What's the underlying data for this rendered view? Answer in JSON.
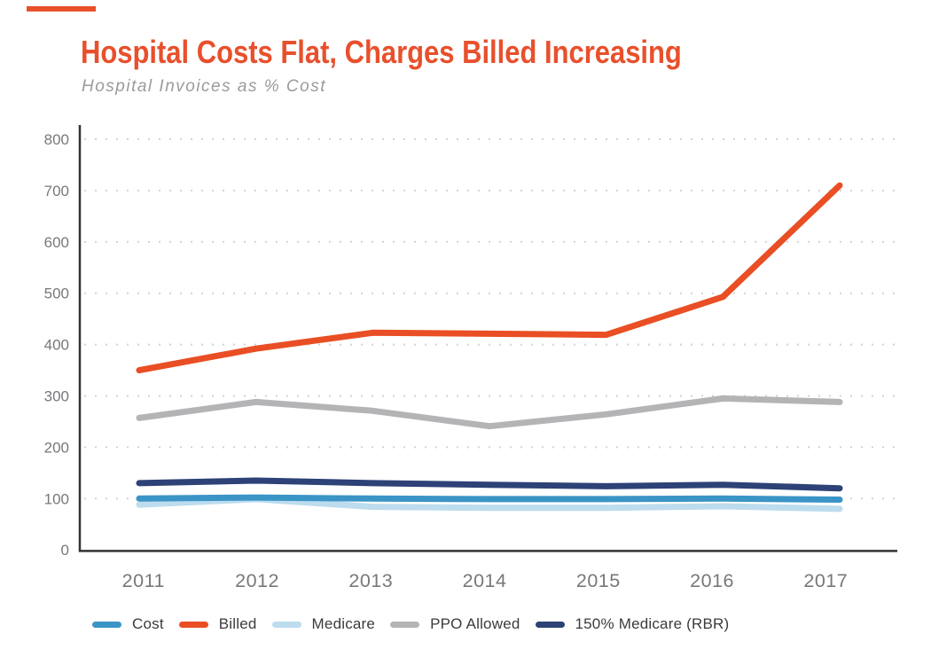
{
  "page": {
    "background": "#FFFFFF",
    "accent_color": "#E8502C"
  },
  "header": {
    "title": "Hospital Costs Flat, Charges Billed Increasing",
    "subtitle": "Hospital Invoices as % Cost"
  },
  "axis": {
    "label_color": "#77787B",
    "line_color": "#333333",
    "grid_color": "#D2D2D4"
  },
  "chart_data": {
    "type": "line",
    "title": "Hospital Costs Flat, Charges Billed Increasing",
    "subtitle": "Hospital Invoices as % Cost",
    "x": [
      "2011",
      "2012",
      "2013",
      "2014",
      "2015",
      "2016",
      "2017"
    ],
    "ylim": [
      0,
      800
    ],
    "yticks": [
      0,
      100,
      200,
      300,
      400,
      500,
      600,
      700,
      800
    ],
    "grid": "horizontal-dotted",
    "legend_position": "bottom",
    "series": [
      {
        "name": "Cost",
        "color": "#3B94C6",
        "values": [
          100,
          102,
          100,
          99,
          99,
          100,
          98
        ]
      },
      {
        "name": "Billed",
        "color": "#E94E24",
        "values": [
          350,
          392,
          423,
          421,
          419,
          493,
          710
        ]
      },
      {
        "name": "Medicare",
        "color": "#BDDCEE",
        "values": [
          88,
          99,
          84,
          82,
          82,
          85,
          80
        ]
      },
      {
        "name": "PPO Allowed",
        "color": "#B4B4B6",
        "values": [
          257,
          288,
          271,
          241,
          264,
          295,
          288
        ]
      },
      {
        "name": "150% Medicare (RBR)",
        "color": "#2D4276",
        "values": [
          130,
          135,
          130,
          127,
          124,
          127,
          120
        ]
      }
    ]
  }
}
